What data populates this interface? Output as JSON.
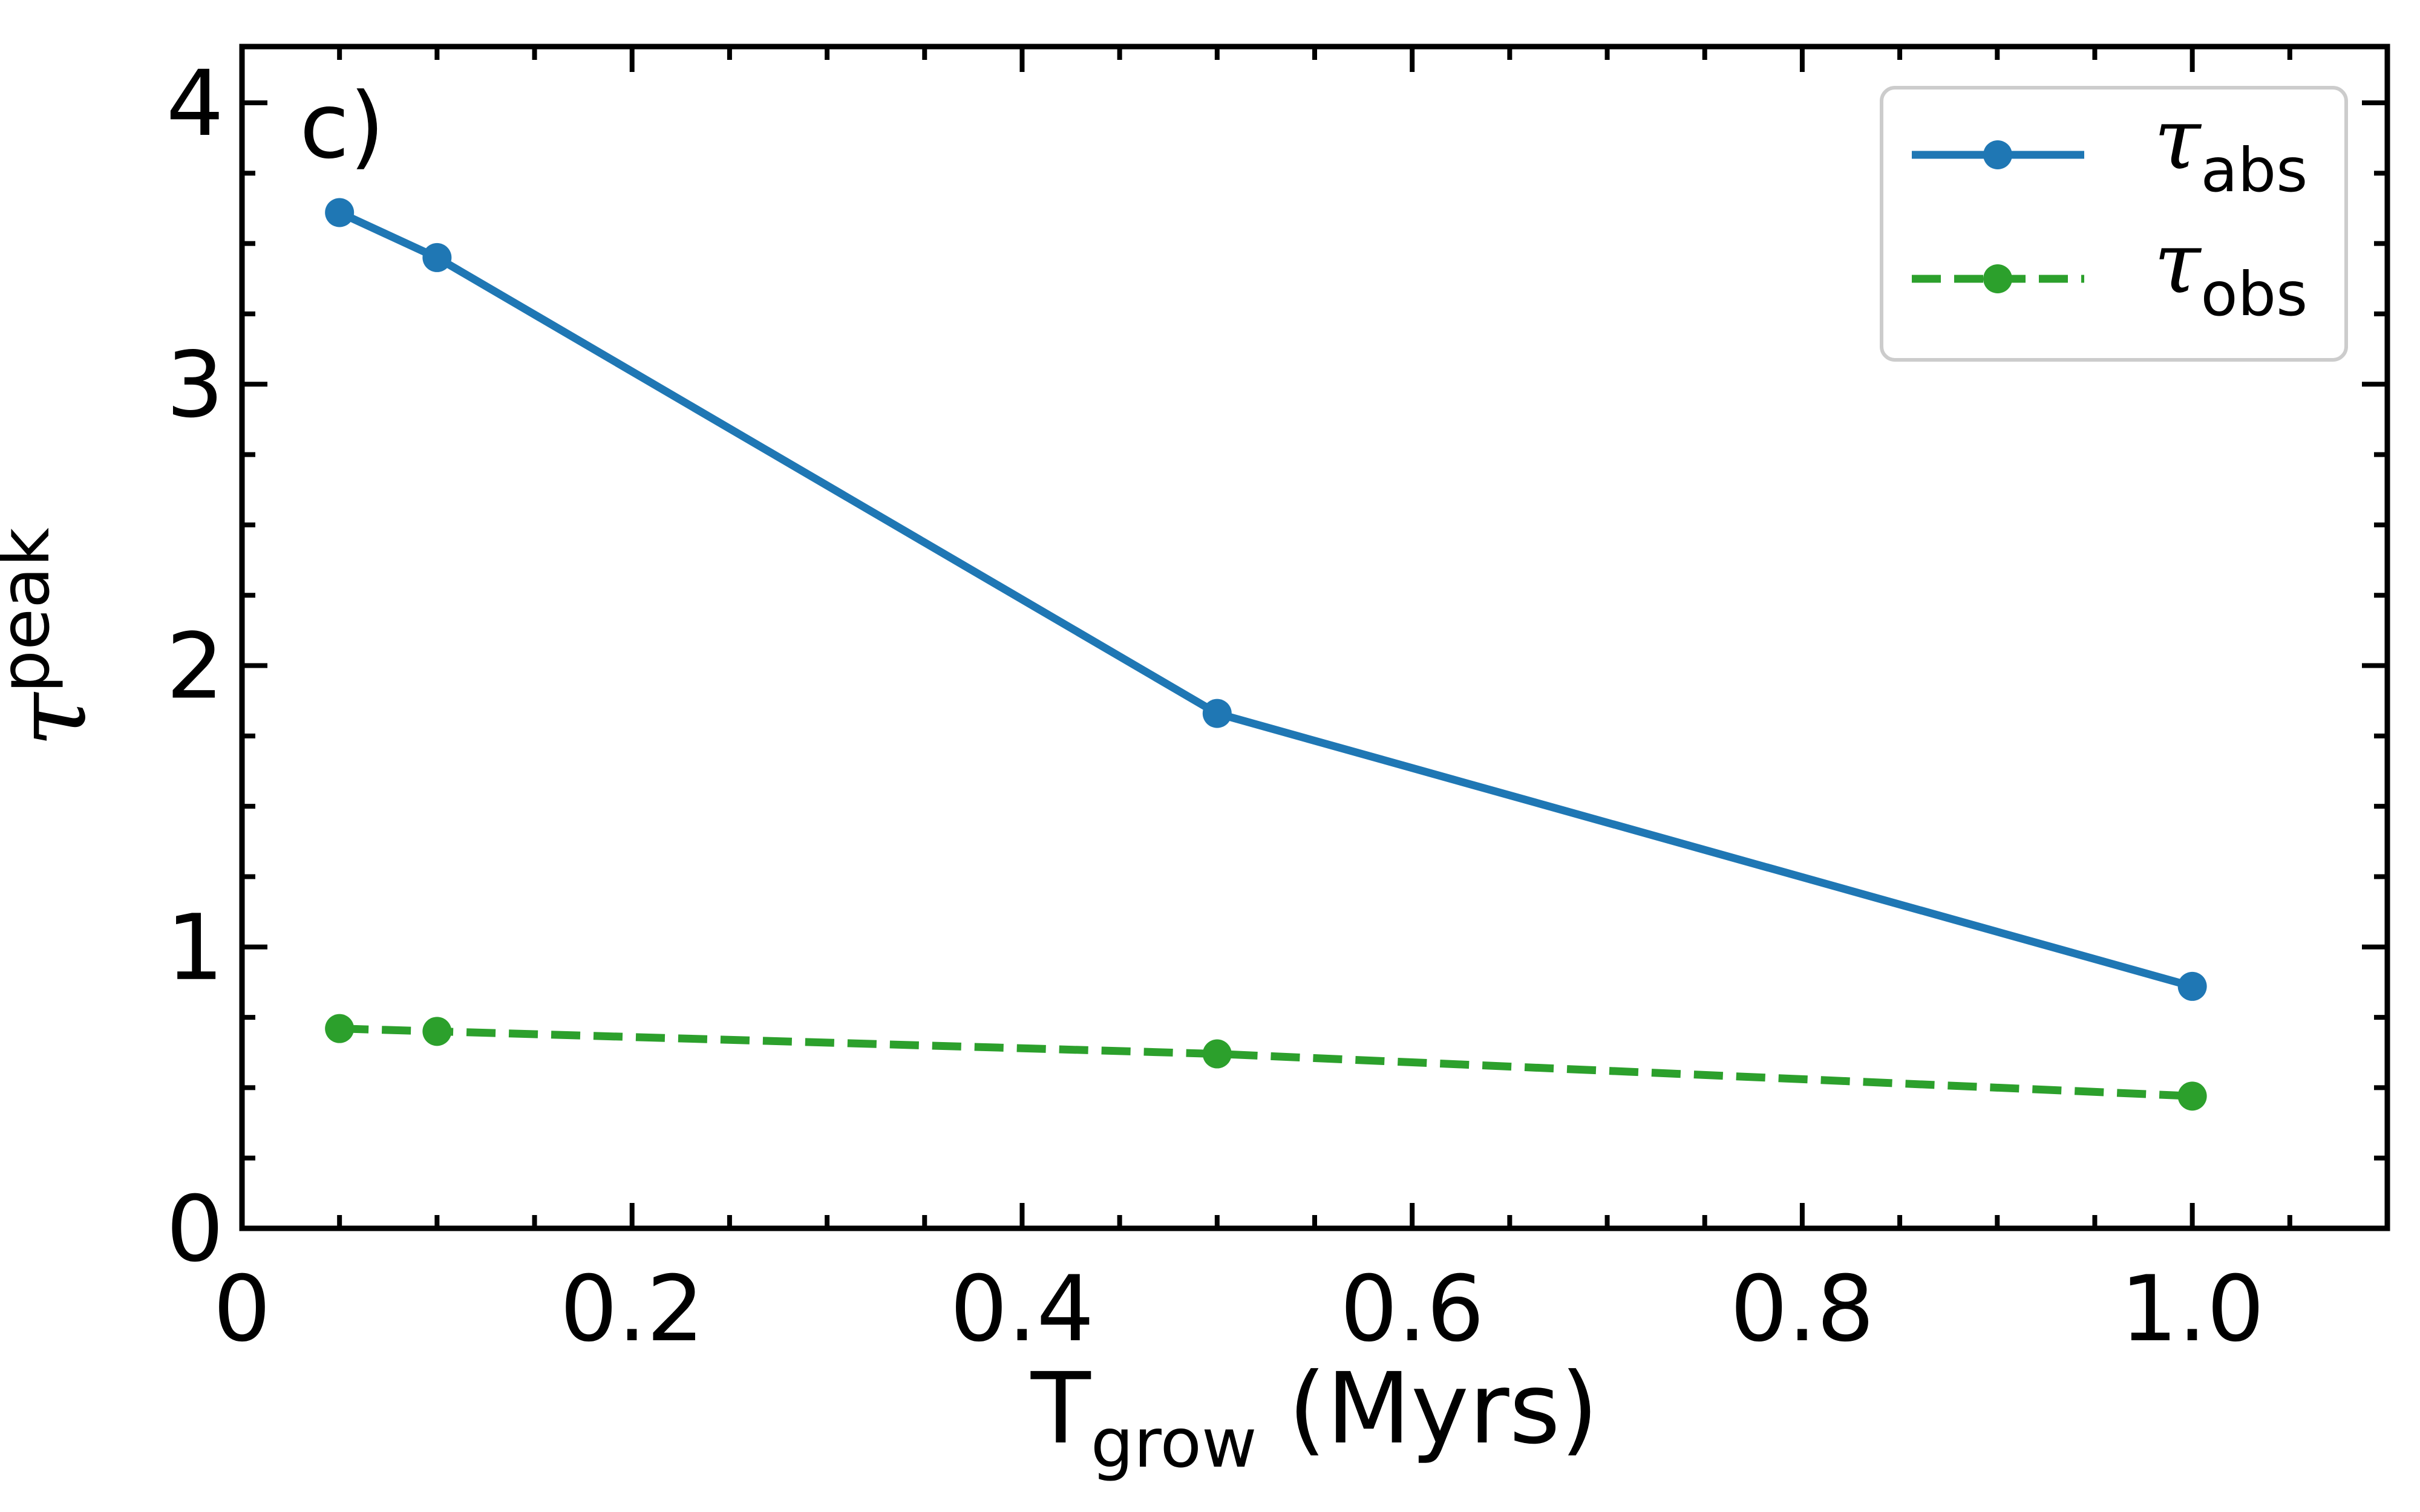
{
  "chart_data": {
    "type": "line",
    "panel_label": "c)",
    "xlabel": {
      "main": "T",
      "sub": "grow",
      "rest": " (Myrs)"
    },
    "ylabel": {
      "main": "τ",
      "sup": "peak"
    },
    "xlim": [
      0,
      1.1
    ],
    "ylim": [
      0,
      4.2
    ],
    "xticks": [
      {
        "value": 0,
        "label": "0"
      },
      {
        "value": 0.2,
        "label": "0.2"
      },
      {
        "value": 0.4,
        "label": "0.4"
      },
      {
        "value": 0.6,
        "label": "0.6"
      },
      {
        "value": 0.8,
        "label": "0.8"
      },
      {
        "value": 1.0,
        "label": "1.0"
      }
    ],
    "yticks": [
      {
        "value": 0,
        "label": "0"
      },
      {
        "value": 1,
        "label": "1"
      },
      {
        "value": 2,
        "label": "2"
      },
      {
        "value": 3,
        "label": "3"
      },
      {
        "value": 4,
        "label": "4"
      }
    ],
    "x_minor_step": 0.05,
    "y_minor_step": 0.25,
    "grid": false,
    "legend_position": "top-right",
    "series": [
      {
        "name_main": "τ",
        "name_sub": "abs",
        "color": "#1f77b4",
        "style": "solid",
        "marker": "circle",
        "x": [
          0.05,
          0.1,
          0.5,
          1.0
        ],
        "y": [
          3.61,
          3.45,
          1.83,
          0.86
        ]
      },
      {
        "name_main": "τ",
        "name_sub": "obs",
        "color": "#2ca02c",
        "style": "dashed",
        "marker": "circle",
        "x": [
          0.05,
          0.1,
          0.5,
          1.0
        ],
        "y": [
          0.71,
          0.7,
          0.62,
          0.47
        ]
      }
    ]
  }
}
